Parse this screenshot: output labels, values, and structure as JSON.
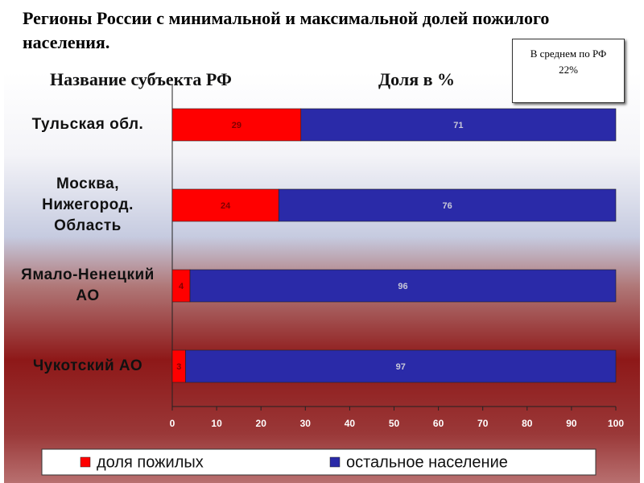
{
  "chart_data": {
    "type": "bar",
    "orientation": "horizontal",
    "stacked": true,
    "title": "Регионы России с минимальной и максимальной долей пожилого населения.",
    "annotation": "В среднем по РФ 22%",
    "category_header": "Название субъекта РФ",
    "value_header": "Доля в %",
    "categories": [
      "Тульская обл.",
      "Москва, Нижегород. Область",
      "Ямало-Ненецкий АО",
      "Чукотский АО"
    ],
    "series": [
      {
        "name": "доля пожилых",
        "color": "#ff0000",
        "values": [
          29,
          24,
          4,
          3
        ]
      },
      {
        "name": "остальное население",
        "color": "#2a2aa8",
        "values": [
          71,
          76,
          96,
          97
        ]
      }
    ],
    "xlim": [
      0,
      100
    ],
    "xticks": [
      0,
      10,
      20,
      30,
      40,
      50,
      60,
      70,
      80,
      90,
      100
    ]
  }
}
